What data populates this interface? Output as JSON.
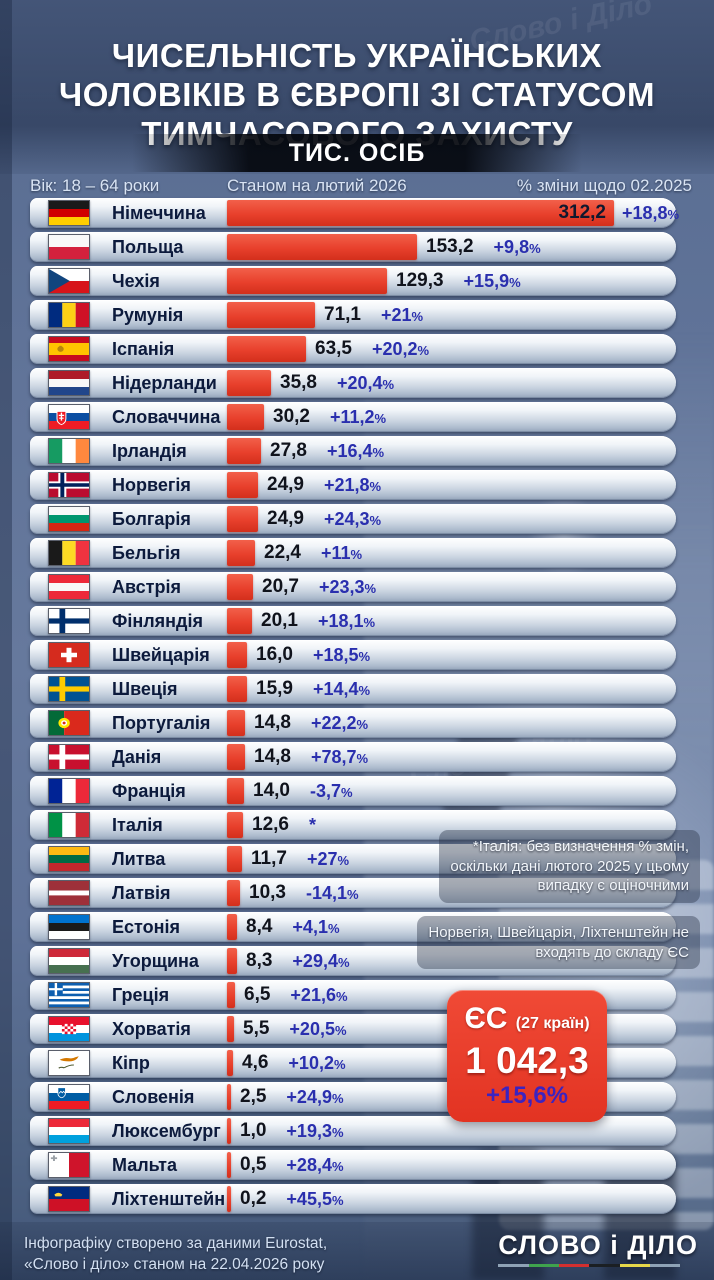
{
  "page": {
    "watermark": "Слово і Діло"
  },
  "header": {
    "title_lines": [
      "ЧИСЕЛЬНІСТЬ УКРАЇНСЬКИХ",
      "ЧОЛОВІКІВ В ЄВРОПІ ЗІ СТАТУСОМ",
      "ТИМЧАСОВОГО ЗАХИСТУ"
    ],
    "units_label": "ТИС. ОСІБ",
    "columns": {
      "left": "Вік: 18 – 64 роки",
      "center": "Станом на лютий 2026",
      "right": "% зміни щодо 02.2025"
    }
  },
  "chart_data": {
    "type": "bar",
    "title": "Чисельність українських чоловіків в Європі зі статусом тимчасового захисту",
    "unit": "тис. осіб",
    "value_axis_max": 312.2,
    "bar_color": "#e8402c",
    "percent_color": "#2a2fae",
    "rows": [
      {
        "country": "Німеччина",
        "value": 312.2,
        "value_label": "312,2",
        "change_label": "+18,8%",
        "value_inside_bar": true,
        "flag": {
          "kind": "h",
          "colors": [
            "#1a1a1a",
            "#d00000",
            "#ffce00"
          ]
        }
      },
      {
        "country": "Польща",
        "value": 153.2,
        "value_label": "153,2",
        "change_label": "+9,8%",
        "value_inside_bar": false,
        "flag": {
          "kind": "h",
          "colors": [
            "#f8f8f8",
            "#d4213d"
          ]
        }
      },
      {
        "country": "Чехія",
        "value": 129.3,
        "value_label": "129,3",
        "change_label": "+15,9%",
        "value_inside_bar": false,
        "flag": {
          "kind": "czech",
          "colors": [
            "#ffffff",
            "#d7141a",
            "#11457e"
          ]
        }
      },
      {
        "country": "Румунія",
        "value": 71.1,
        "value_label": "71,1",
        "change_label": "+21%",
        "value_inside_bar": false,
        "flag": {
          "kind": "v",
          "colors": [
            "#002b7f",
            "#fcd116",
            "#ce1126"
          ]
        }
      },
      {
        "country": "Іспанія",
        "value": 63.5,
        "value_label": "63,5",
        "change_label": "+20,2%",
        "value_inside_bar": false,
        "flag": {
          "kind": "spain",
          "colors": [
            "#c60b1e",
            "#ffc400"
          ]
        }
      },
      {
        "country": "Нідерланди",
        "value": 35.8,
        "value_label": "35,8",
        "change_label": "+20,4%",
        "value_inside_bar": false,
        "flag": {
          "kind": "h",
          "colors": [
            "#ae1c28",
            "#f8f8f8",
            "#21468b"
          ]
        }
      },
      {
        "country": "Словаччина",
        "value": 30.2,
        "value_label": "30,2",
        "change_label": "+11,2%",
        "value_inside_bar": false,
        "flag": {
          "kind": "slovakia",
          "colors": [
            "#ffffff",
            "#0b4ea2",
            "#ee1c25"
          ]
        }
      },
      {
        "country": "Ірландія",
        "value": 27.8,
        "value_label": "27,8",
        "change_label": "+16,4%",
        "value_inside_bar": false,
        "flag": {
          "kind": "v",
          "colors": [
            "#169b62",
            "#ffffff",
            "#ff883e"
          ]
        }
      },
      {
        "country": "Норвегія",
        "value": 24.9,
        "value_label": "24,9",
        "change_label": "+21,8%",
        "value_inside_bar": false,
        "flag": {
          "kind": "nordic",
          "colors": [
            "#ba0c2f",
            "#ffffff",
            "#00205b"
          ]
        }
      },
      {
        "country": "Болгарія",
        "value": 24.9,
        "value_label": "24,9",
        "change_label": "+24,3%",
        "value_inside_bar": false,
        "flag": {
          "kind": "h",
          "colors": [
            "#f8f8f8",
            "#00966e",
            "#d62612"
          ]
        }
      },
      {
        "country": "Бельгія",
        "value": 22.4,
        "value_label": "22,4",
        "change_label": "+11%",
        "value_inside_bar": false,
        "flag": {
          "kind": "v",
          "colors": [
            "#1a1a1a",
            "#fdda24",
            "#ef3340"
          ]
        }
      },
      {
        "country": "Австрія",
        "value": 20.7,
        "value_label": "20,7",
        "change_label": "+23,3%",
        "value_inside_bar": false,
        "flag": {
          "kind": "h",
          "colors": [
            "#ed2939",
            "#f8f8f8",
            "#ed2939"
          ]
        }
      },
      {
        "country": "Фінляндія",
        "value": 20.1,
        "value_label": "20,1",
        "change_label": "+18,1%",
        "value_inside_bar": false,
        "flag": {
          "kind": "nordic",
          "colors": [
            "#ffffff",
            "#002f6c"
          ]
        }
      },
      {
        "country": "Швейцарія",
        "value": 16.0,
        "value_label": "16,0",
        "change_label": "+18,5%",
        "value_inside_bar": false,
        "flag": {
          "kind": "swiss",
          "colors": [
            "#d52b1e",
            "#ffffff"
          ]
        }
      },
      {
        "country": "Швеція",
        "value": 15.9,
        "value_label": "15,9",
        "change_label": "+14,4%",
        "value_inside_bar": false,
        "flag": {
          "kind": "nordic",
          "colors": [
            "#005293",
            "#fecb00"
          ]
        }
      },
      {
        "country": "Португалія",
        "value": 14.8,
        "value_label": "14,8",
        "change_label": "+22,2%",
        "value_inside_bar": false,
        "flag": {
          "kind": "portugal",
          "colors": [
            "#046a38",
            "#da291c",
            "#ffe900"
          ]
        }
      },
      {
        "country": "Данія",
        "value": 14.8,
        "value_label": "14,8",
        "change_label": "+78,7%",
        "value_inside_bar": false,
        "flag": {
          "kind": "nordic",
          "colors": [
            "#c8102e",
            "#ffffff"
          ]
        }
      },
      {
        "country": "Франція",
        "value": 14.0,
        "value_label": "14,0",
        "change_label": "-3,7%",
        "value_inside_bar": false,
        "flag": {
          "kind": "v",
          "colors": [
            "#002395",
            "#ffffff",
            "#ed2939"
          ]
        }
      },
      {
        "country": "Італія",
        "value": 12.6,
        "value_label": "12,6",
        "change_label": "*",
        "value_inside_bar": false,
        "flag": {
          "kind": "v",
          "colors": [
            "#009246",
            "#ffffff",
            "#ce2b37"
          ]
        }
      },
      {
        "country": "Литва",
        "value": 11.7,
        "value_label": "11,7",
        "change_label": "+27%",
        "value_inside_bar": false,
        "flag": {
          "kind": "h",
          "colors": [
            "#fdb913",
            "#006a44",
            "#c1272d"
          ]
        }
      },
      {
        "country": "Латвія",
        "value": 10.3,
        "value_label": "10,3",
        "change_label": "-14,1%",
        "value_inside_bar": false,
        "flag": {
          "kind": "h",
          "colors": [
            "#9e3039",
            "#ffffff",
            "#9e3039"
          ],
          "w": [
            2,
            1,
            2
          ]
        }
      },
      {
        "country": "Естонія",
        "value": 8.4,
        "value_label": "8,4",
        "change_label": "+4,1%",
        "value_inside_bar": false,
        "flag": {
          "kind": "h",
          "colors": [
            "#0072ce",
            "#1a1a1a",
            "#ffffff"
          ]
        }
      },
      {
        "country": "Угорщина",
        "value": 8.3,
        "value_label": "8,3",
        "change_label": "+29,4%",
        "value_inside_bar": false,
        "flag": {
          "kind": "h",
          "colors": [
            "#ce2939",
            "#ffffff",
            "#477050"
          ]
        }
      },
      {
        "country": "Греція",
        "value": 6.5,
        "value_label": "6,5",
        "change_label": "+21,6%",
        "value_inside_bar": false,
        "flag": {
          "kind": "greece",
          "colors": [
            "#0d5eaf",
            "#ffffff"
          ]
        }
      },
      {
        "country": "Хорватія",
        "value": 5.5,
        "value_label": "5,5",
        "change_label": "+20,5%",
        "value_inside_bar": false,
        "flag": {
          "kind": "croatia",
          "colors": [
            "#e8112d",
            "#ffffff",
            "#0093dd"
          ]
        }
      },
      {
        "country": "Кіпр",
        "value": 4.6,
        "value_label": "4,6",
        "change_label": "+10,2%",
        "value_inside_bar": false,
        "flag": {
          "kind": "cyprus",
          "colors": [
            "#ffffff",
            "#d57800",
            "#4e5b31"
          ]
        }
      },
      {
        "country": "Словенія",
        "value": 2.5,
        "value_label": "2,5",
        "change_label": "+24,9%",
        "value_inside_bar": false,
        "flag": {
          "kind": "slovenia",
          "colors": [
            "#ffffff",
            "#005da4",
            "#ed1c24"
          ]
        }
      },
      {
        "country": "Люксембург",
        "value": 1.0,
        "value_label": "1,0",
        "change_label": "+19,3%",
        "value_inside_bar": false,
        "flag": {
          "kind": "h",
          "colors": [
            "#ed2939",
            "#ffffff",
            "#00a1de"
          ]
        }
      },
      {
        "country": "Мальта",
        "value": 0.5,
        "value_label": "0,5",
        "change_label": "+28,4%",
        "value_inside_bar": false,
        "flag": {
          "kind": "malta",
          "colors": [
            "#ffffff",
            "#cf142b"
          ]
        }
      },
      {
        "country": "Ліхтенштейн",
        "value": 0.2,
        "value_label": "0,2",
        "change_label": "+45,5%",
        "value_inside_bar": false,
        "flag": {
          "kind": "liech",
          "colors": [
            "#002b7f",
            "#ce1126",
            "#ffd83d"
          ]
        }
      }
    ],
    "eu_total": {
      "label": "ЄС",
      "countries_label": "(27 країн)",
      "value": 1042.3,
      "value_label": "1 042,3",
      "change_label": "+15,6%"
    }
  },
  "notes": {
    "italy": "*Італія: без визначення % змін,\nоскільки дані лютого 2025 у цьому\nвипадку є оціночними",
    "non_eu": "Норвегія, Швейцарія, Ліхтенштейн не\nвходять до складу ЄС"
  },
  "footer": {
    "source": "Інфографіку створено за даними Eurostat,\n«Слово і діло» станом на 22.04.2026 року",
    "logo_text": "СЛОВО і ДІЛО",
    "logo_stripe_colors": [
      "#8fa3b6",
      "#3fa34d",
      "#d32f2f",
      "#1b1f23",
      "#e6d84a",
      "#8fa3b6"
    ]
  },
  "colors": {
    "bar": "#e8402c",
    "percent_text": "#2a2fae",
    "eu_box": "#e8402c",
    "eu_change_text": "#3c23c0",
    "row_text": "#0c1a3c",
    "background": "#5f7298"
  }
}
